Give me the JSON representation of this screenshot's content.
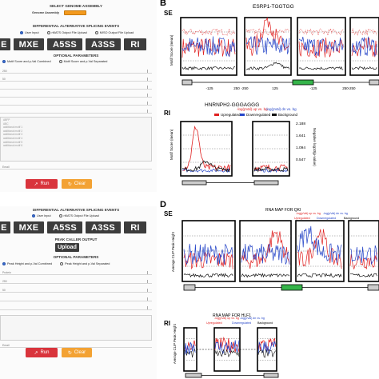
{
  "top_form": {
    "title": "SELECT GENOME ASSEMBLY",
    "genome_label": "Genome Assembly",
    "events_title": "DIFFERENTIAL ALTERNATIVE SPLICING EVENTS",
    "upload_options": [
      "User Input",
      "rMATS Output File Upload",
      "MISO Output File Upload"
    ],
    "event_buttons": [
      "E",
      "MXE",
      "A5SS",
      "A3SS",
      "RI"
    ],
    "optional_title": "OPTIONAL PARAMETERS",
    "score_options": [
      "Motif Score and p-Val Combined",
      "Motif Score and p-Val Separated"
    ],
    "fields": [
      "250",
      "50",
      "",
      "",
      "",
      "",
      ""
    ],
    "textarea_lines": [
      "ABFP",
      "ABC",
      "additional motif 1",
      "additional motif 2",
      "additional motif 3",
      "additional motif 4",
      "additional motif 5",
      "additional motif 6"
    ],
    "email": "Email",
    "run": "Run",
    "clear": "Clear"
  },
  "bottom_form": {
    "events_title": "DIFFERENTIAL ALTERNATIVE SPLICING EVENTS",
    "upload_options": [
      "User Input",
      "rMATS Output File Upload"
    ],
    "event_buttons": [
      "E",
      "MXE",
      "A5SS",
      "A3SS",
      "RI"
    ],
    "peak_title": "PEAK CALLER OUTPUT",
    "upload_label": "Upload",
    "optional_title": "OPTIONAL PARAMETERS",
    "score_options": [
      "Peak Height and p-Val Combined",
      "Peak Height and p-Val Separated"
    ],
    "fields": [
      "Protein",
      "250",
      "50",
      "",
      ""
    ],
    "email": "Email",
    "run": "Run",
    "clear": "Clear"
  },
  "panel_b": {
    "letter": "B",
    "se": {
      "tag": "SE",
      "title": "ESRP1-TGGTGG",
      "ylabel": "Motif Score (mean)",
      "x_ticks": [
        "-125",
        "250",
        "-250",
        "125",
        "-125",
        "250",
        "-250"
      ]
    },
    "ri": {
      "tag": "RI",
      "title": "HNRNPH2-GGGAGGG",
      "ylabel": "Motif Score (mean)",
      "y2label": "Negative log10(p-value)",
      "y2_ticks": [
        "2.188",
        "1.641",
        "1.094",
        "0.547"
      ],
      "legend": [
        "-log(pVal) up vs. bg",
        "-log(pVal) dn vs. bg",
        "Upregulated",
        "Downregulated",
        "Background"
      ]
    }
  },
  "panel_d": {
    "letter": "D",
    "se": {
      "tag": "SE",
      "title": "RNA  MAP  FOR QKI",
      "ylabel": "Average CLIP Peak Height",
      "legend": [
        "-log(pVal) up vs. bg",
        "-log(pVal) dn vs. bg",
        "Upregulated",
        "Downregulated",
        "Background"
      ]
    },
    "ri": {
      "tag": "RI",
      "title": "RNA  MAP  FOR HLF1",
      "ylabel": "Average CLIP Peak Height",
      "legend": [
        "-log(pVal) up vs. bg",
        "-log(pVal) dn vs. bg",
        "Upregulated",
        "Downregulated",
        "Background"
      ]
    }
  },
  "colors": {
    "up": "#e02020",
    "down": "#2545c8",
    "background": "#111111",
    "exon_green": "#35b44a",
    "exon_gray": "#cccccc",
    "run": "#d9343c",
    "clear": "#f3a233",
    "genome_select": "#f39a1e"
  }
}
